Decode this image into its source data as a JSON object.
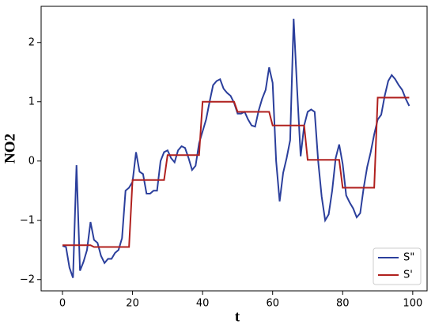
{
  "chart_data": {
    "type": "line",
    "x_label": "t",
    "y_label": "NO2",
    "x": [
      0,
      1,
      2,
      3,
      4,
      5,
      6,
      7,
      8,
      9,
      10,
      11,
      12,
      13,
      14,
      15,
      16,
      17,
      18,
      19,
      20,
      21,
      22,
      23,
      24,
      25,
      26,
      27,
      28,
      29,
      30,
      31,
      32,
      33,
      34,
      35,
      36,
      37,
      38,
      39,
      40,
      41,
      42,
      43,
      44,
      45,
      46,
      47,
      48,
      49,
      50,
      51,
      52,
      53,
      54,
      55,
      56,
      57,
      58,
      59,
      60,
      61,
      62,
      63,
      64,
      65,
      66,
      67,
      68,
      69,
      70,
      71,
      72,
      73,
      74,
      75,
      76,
      77,
      78,
      79,
      80,
      81,
      82,
      83,
      84,
      85,
      86,
      87,
      88,
      89,
      90,
      91,
      92,
      93,
      94,
      95,
      96,
      97,
      98,
      99
    ],
    "series": [
      {
        "name": "S\"",
        "color": "#2b3f9c",
        "values": [
          -1.43,
          -1.45,
          -1.8,
          -1.97,
          -0.07,
          -1.85,
          -1.7,
          -1.5,
          -1.03,
          -1.33,
          -1.38,
          -1.6,
          -1.72,
          -1.65,
          -1.65,
          -1.55,
          -1.5,
          -1.3,
          -0.5,
          -0.45,
          -0.35,
          0.15,
          -0.18,
          -0.22,
          -0.55,
          -0.55,
          -0.5,
          -0.5,
          0.0,
          0.15,
          0.18,
          0.05,
          -0.02,
          0.18,
          0.25,
          0.22,
          0.05,
          -0.15,
          -0.08,
          0.3,
          0.5,
          0.7,
          1.0,
          1.28,
          1.35,
          1.38,
          1.22,
          1.15,
          1.1,
          0.98,
          0.8,
          0.8,
          0.83,
          0.7,
          0.6,
          0.58,
          0.85,
          1.05,
          1.2,
          1.58,
          1.32,
          0.0,
          -0.68,
          -0.2,
          0.05,
          0.35,
          2.4,
          1.2,
          0.08,
          0.6,
          0.83,
          0.87,
          0.83,
          0.0,
          -0.6,
          -1.0,
          -0.9,
          -0.5,
          0.05,
          0.28,
          -0.05,
          -0.58,
          -0.7,
          -0.8,
          -0.95,
          -0.88,
          -0.45,
          -0.1,
          0.15,
          0.45,
          0.7,
          0.78,
          1.1,
          1.35,
          1.45,
          1.38,
          1.28,
          1.2,
          1.05,
          0.93
        ]
      },
      {
        "name": "S'",
        "color": "#b0201e",
        "values": [
          -1.42,
          -1.42,
          -1.42,
          -1.42,
          -1.42,
          -1.42,
          -1.42,
          -1.42,
          -1.42,
          -1.45,
          -1.45,
          -1.45,
          -1.45,
          -1.45,
          -1.45,
          -1.45,
          -1.45,
          -1.45,
          -1.45,
          -1.45,
          -0.32,
          -0.32,
          -0.32,
          -0.32,
          -0.32,
          -0.32,
          -0.32,
          -0.32,
          -0.32,
          -0.32,
          0.1,
          0.1,
          0.1,
          0.1,
          0.1,
          0.1,
          0.1,
          0.1,
          0.1,
          0.1,
          1.0,
          1.0,
          1.0,
          1.0,
          1.0,
          1.0,
          1.0,
          1.0,
          1.0,
          1.0,
          0.83,
          0.83,
          0.83,
          0.83,
          0.83,
          0.83,
          0.83,
          0.83,
          0.83,
          0.83,
          0.6,
          0.6,
          0.6,
          0.6,
          0.6,
          0.6,
          0.6,
          0.6,
          0.6,
          0.6,
          0.02,
          0.02,
          0.02,
          0.02,
          0.02,
          0.02,
          0.02,
          0.02,
          0.02,
          0.02,
          -0.45,
          -0.45,
          -0.45,
          -0.45,
          -0.45,
          -0.45,
          -0.45,
          -0.45,
          -0.45,
          -0.45,
          1.07,
          1.07,
          1.07,
          1.07,
          1.07,
          1.07,
          1.07,
          1.07,
          1.07,
          1.07
        ]
      }
    ],
    "xlim": [
      -6.1,
      104.1
    ],
    "ylim": [
      -2.19,
      2.61
    ],
    "xticks": [
      0,
      20,
      40,
      60,
      80,
      100
    ],
    "yticks": [
      {
        "value": -2,
        "label": "−2"
      },
      {
        "value": -1,
        "label": "−1"
      },
      0,
      1,
      2
    ],
    "legend": "lower right"
  }
}
